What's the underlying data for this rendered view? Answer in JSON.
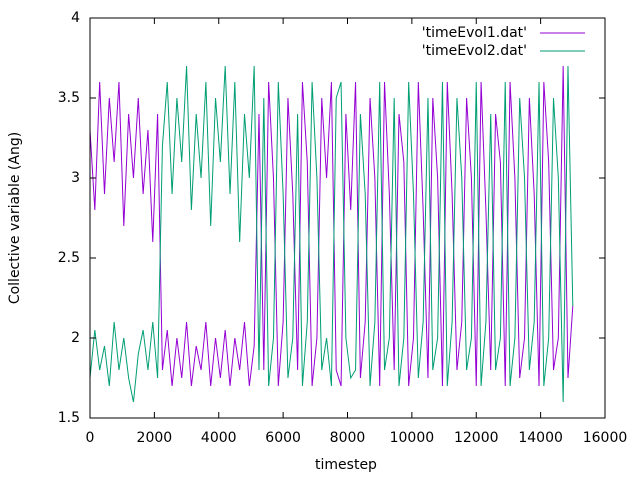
{
  "chart_data": {
    "type": "line",
    "xlabel": "timestep",
    "ylabel": "Collective variable (Ang)",
    "x": [
      0,
      150,
      300,
      450,
      600,
      750,
      900,
      1050,
      1200,
      1350,
      1500,
      1650,
      1800,
      1950,
      2100,
      2250,
      2400,
      2550,
      2700,
      2850,
      3000,
      3150,
      3300,
      3450,
      3600,
      3750,
      3900,
      4050,
      4200,
      4350,
      4500,
      4650,
      4800,
      4950,
      5100,
      5250,
      5400,
      5550,
      5700,
      5850,
      6000,
      6150,
      6300,
      6450,
      6600,
      6750,
      6900,
      7050,
      7200,
      7350,
      7500,
      7650,
      7800,
      7950,
      8100,
      8250,
      8400,
      8550,
      8700,
      8850,
      9000,
      9150,
      9300,
      9450,
      9600,
      9750,
      9900,
      10050,
      10200,
      10350,
      10500,
      10650,
      10800,
      10950,
      11100,
      11250,
      11400,
      11550,
      11700,
      11850,
      12000,
      12150,
      12300,
      12450,
      12600,
      12750,
      12900,
      13050,
      13200,
      13350,
      13500,
      13650,
      13800,
      13950,
      14100,
      14250,
      14400,
      14550,
      14700,
      14850,
      15000
    ],
    "series": [
      {
        "name": "'timeEvol1.dat'",
        "color": "#9400d3",
        "values": [
          3.3,
          2.8,
          3.6,
          2.9,
          3.5,
          3.1,
          3.6,
          2.7,
          3.4,
          3.0,
          3.5,
          2.9,
          3.3,
          2.6,
          3.4,
          1.8,
          2.05,
          1.7,
          2.0,
          1.75,
          2.1,
          1.7,
          1.95,
          1.8,
          2.1,
          1.7,
          2.0,
          1.75,
          2.05,
          1.7,
          2.0,
          1.8,
          2.1,
          1.7,
          1.95,
          3.4,
          1.8,
          3.6,
          3.0,
          1.7,
          2.1,
          3.5,
          2.9,
          1.8,
          3.6,
          3.1,
          1.7,
          2.0,
          3.5,
          3.0,
          3.6,
          1.8,
          1.7,
          3.4,
          2.8,
          3.6,
          1.75,
          2.1,
          3.5,
          3.0,
          1.7,
          3.6,
          2.9,
          1.8,
          3.4,
          3.1,
          1.7,
          2.0,
          3.6,
          2.8,
          1.75,
          3.5,
          3.0,
          1.7,
          3.6,
          2.9,
          1.8,
          2.1,
          3.5,
          3.0,
          1.7,
          3.6,
          2.8,
          1.8,
          3.4,
          3.1,
          1.7,
          3.6,
          3.0,
          1.75,
          2.0,
          3.5,
          2.9,
          1.7,
          3.6,
          3.1,
          1.8,
          2.0,
          3.7,
          1.75,
          2.2
        ]
      },
      {
        "name": "'timeEvol2.dat'",
        "color": "#009e73",
        "values": [
          1.75,
          2.05,
          1.8,
          1.95,
          1.7,
          2.1,
          1.8,
          2.0,
          1.75,
          1.6,
          1.9,
          2.05,
          1.8,
          2.1,
          1.75,
          3.2,
          3.6,
          2.9,
          3.5,
          3.1,
          3.7,
          2.8,
          3.4,
          3.0,
          3.6,
          2.7,
          3.5,
          3.1,
          3.7,
          2.9,
          3.6,
          2.6,
          3.4,
          3.0,
          3.7,
          1.8,
          3.5,
          1.7,
          2.0,
          3.6,
          2.9,
          1.75,
          2.0,
          3.4,
          1.7,
          2.1,
          3.6,
          3.0,
          1.8,
          2.0,
          1.7,
          3.5,
          3.6,
          2.0,
          1.75,
          1.8,
          3.4,
          2.9,
          1.7,
          2.1,
          3.6,
          1.8,
          2.0,
          3.5,
          1.7,
          2.0,
          3.6,
          2.9,
          1.75,
          2.1,
          3.5,
          1.8,
          2.0,
          3.6,
          1.7,
          2.1,
          3.5,
          3.0,
          1.8,
          2.0,
          3.6,
          1.7,
          2.1,
          3.4,
          1.8,
          2.0,
          3.6,
          1.7,
          2.0,
          3.5,
          3.0,
          1.8,
          2.1,
          3.6,
          1.7,
          2.0,
          3.5,
          3.0,
          1.6,
          3.7,
          2.2
        ]
      }
    ],
    "xlim": [
      0,
      16000
    ],
    "xticks": [
      0,
      2000,
      4000,
      6000,
      8000,
      10000,
      12000,
      14000,
      16000
    ],
    "ylim": [
      1.5,
      4
    ],
    "yticks": [
      1.5,
      2,
      2.5,
      3,
      3.5,
      4
    ],
    "grid": false,
    "legend": "upper-right"
  }
}
